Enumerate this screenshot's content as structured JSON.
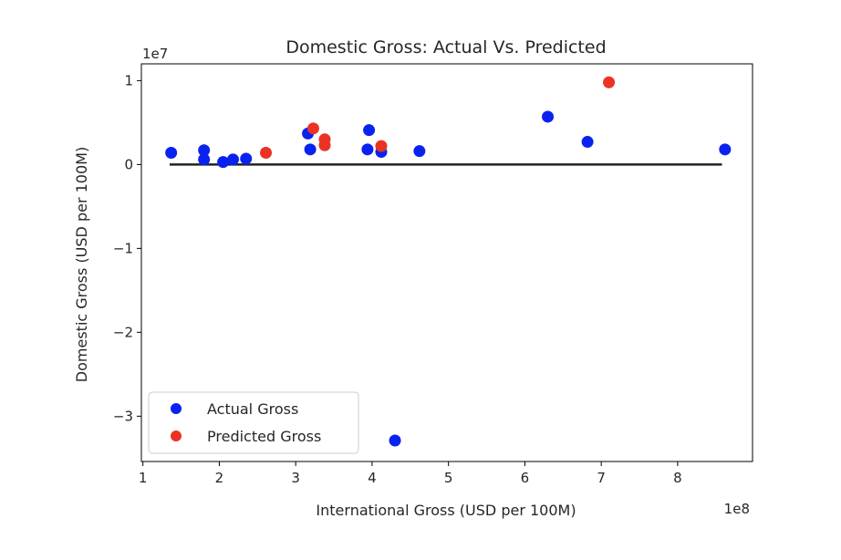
{
  "chart_data": {
    "type": "scatter",
    "title": "Domestic Gross: Actual Vs. Predicted",
    "xlabel": "International Gross (USD per 100M)",
    "ylabel": "Domestic Gross (USD per 100M)",
    "x_offset_text": "1e8",
    "y_offset_text": "1e7",
    "xlim": [
      0.98,
      8.98
    ],
    "ylim": [
      -3.54,
      1.2
    ],
    "xticks": [
      1,
      2,
      3,
      4,
      5,
      6,
      7,
      8
    ],
    "yticks": [
      1,
      0,
      -1,
      -2,
      -3
    ],
    "xtick_labels": [
      "1",
      "2",
      "3",
      "4",
      "5",
      "6",
      "7",
      "8"
    ],
    "ytick_labels": [
      "1",
      "0",
      "−1",
      "−2",
      "−3"
    ],
    "legend_position": "lower-left",
    "baseline": {
      "y": 0,
      "x_start": 1.35,
      "x_end": 8.58,
      "color": "#222222"
    },
    "series": [
      {
        "name": "Actual Gross",
        "color": "#0a22f0",
        "points": [
          [
            1.37,
            0.14
          ],
          [
            1.8,
            0.17
          ],
          [
            1.8,
            0.06
          ],
          [
            2.05,
            0.03
          ],
          [
            2.18,
            0.06
          ],
          [
            2.35,
            0.07
          ],
          [
            3.16,
            0.37
          ],
          [
            3.19,
            0.18
          ],
          [
            3.94,
            0.18
          ],
          [
            3.96,
            0.41
          ],
          [
            4.12,
            0.15
          ],
          [
            4.62,
            0.16
          ],
          [
            4.3,
            -3.29
          ],
          [
            6.3,
            0.57
          ],
          [
            6.82,
            0.27
          ],
          [
            8.62,
            0.18
          ]
        ]
      },
      {
        "name": "Predicted Gross",
        "color": "#ea3323",
        "points": [
          [
            2.61,
            0.14
          ],
          [
            3.23,
            0.43
          ],
          [
            3.38,
            0.3
          ],
          [
            3.38,
            0.23
          ],
          [
            4.12,
            0.22
          ],
          [
            7.1,
            0.98
          ]
        ]
      }
    ]
  }
}
